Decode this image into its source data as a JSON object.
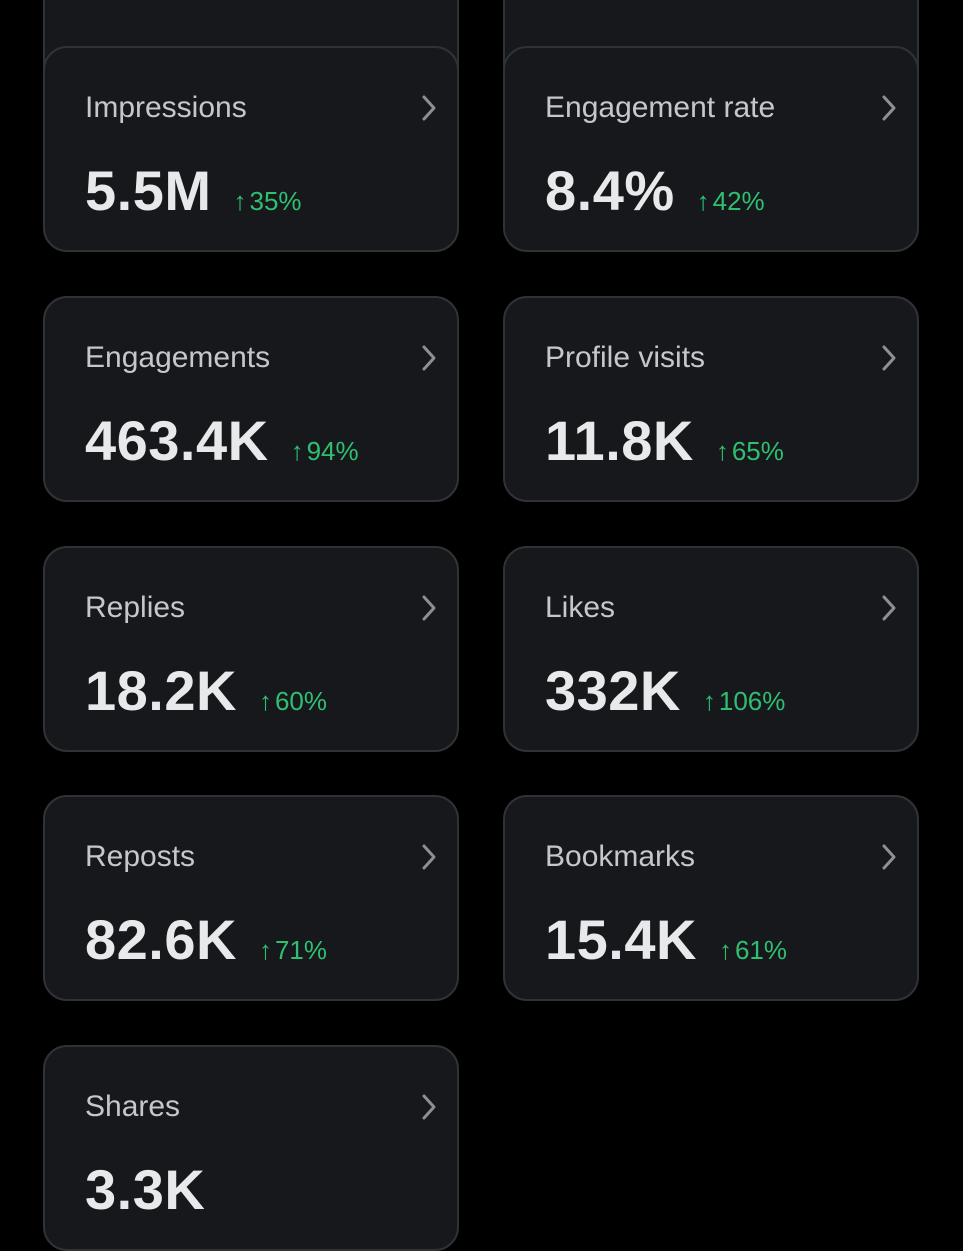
{
  "metrics": [
    {
      "label": "Impressions",
      "value": "5.5M",
      "change_arrow": "↑",
      "change": "35%"
    },
    {
      "label": "Engagement rate",
      "value": "8.4%",
      "change_arrow": "↑",
      "change": "42%"
    },
    {
      "label": "Engagements",
      "value": "463.4K",
      "change_arrow": "↑",
      "change": "94%"
    },
    {
      "label": "Profile visits",
      "value": "11.8K",
      "change_arrow": "↑",
      "change": "65%"
    },
    {
      "label": "Replies",
      "value": "18.2K",
      "change_arrow": "↑",
      "change": "60%"
    },
    {
      "label": "Likes",
      "value": "332K",
      "change_arrow": "↑",
      "change": "106%"
    },
    {
      "label": "Reposts",
      "value": "82.6K",
      "change_arrow": "↑",
      "change": "71%"
    },
    {
      "label": "Bookmarks",
      "value": "15.4K",
      "change_arrow": "↑",
      "change": "61%"
    },
    {
      "label": "Shares",
      "value": "3.3K"
    }
  ],
  "icons": {
    "chevron": "chevron-right-icon",
    "trend": "arrow-up-icon"
  },
  "colors": {
    "page_background": "#000000",
    "card_background": "#16181c",
    "card_border": "#2f3336",
    "label_text": "#c4c8cc",
    "value_text": "#e7e9ea",
    "positive_change": "#2fbf71",
    "chevron": "#8b9096"
  }
}
